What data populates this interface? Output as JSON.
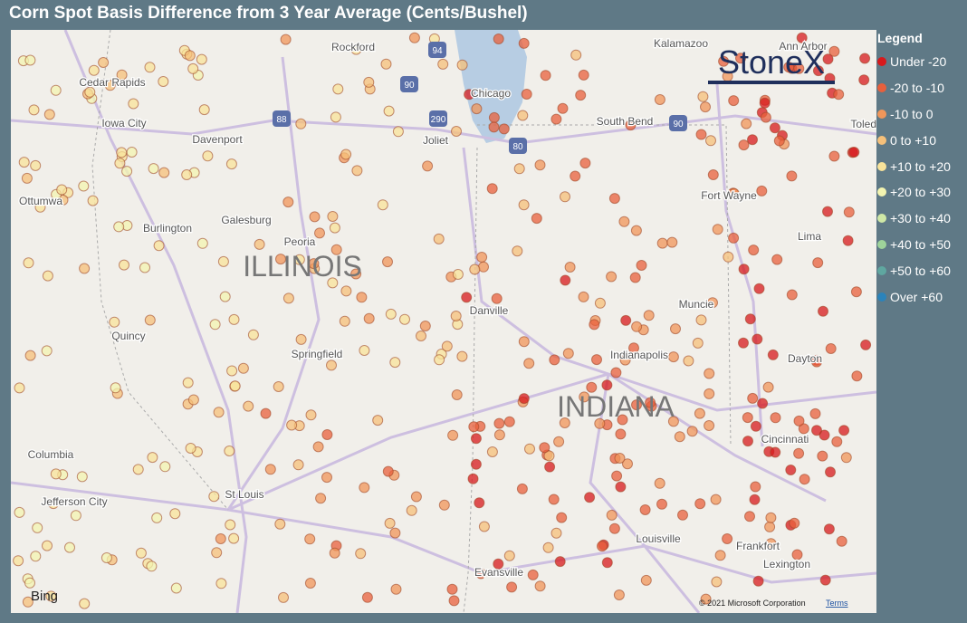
{
  "header": {
    "title": "Corn Spot Basis Difference from 3 Year Average (Cents/Bushel)"
  },
  "legend": {
    "title": "Legend",
    "items": [
      {
        "label": "Under -20",
        "color": "#d7191c"
      },
      {
        "label": "-20 to -10",
        "color": "#e8603c"
      },
      {
        "label": "-10 to 0",
        "color": "#f0965a"
      },
      {
        "label": "0 to +10",
        "color": "#f5c07a"
      },
      {
        "label": "+10 to +20",
        "color": "#f8e39a"
      },
      {
        "label": "+20 to +30",
        "color": "#f3f4b0"
      },
      {
        "label": "+30 to +40",
        "color": "#cfe8a6"
      },
      {
        "label": "+40 to +50",
        "color": "#9ed39a"
      },
      {
        "label": "+50 to +60",
        "color": "#5fa7a0"
      },
      {
        "label": "Over +60",
        "color": "#2b83ba"
      }
    ]
  },
  "map": {
    "labels": [
      "Rockford",
      "Kalamazoo",
      "Ann Arbor",
      "Cedar Rapids",
      "Chicago",
      "Iowa City",
      "Davenport",
      "Joliet",
      "South Bend",
      "Toledo",
      "Ottumwa",
      "Galesburg",
      "Burlington",
      "Fort Wayne",
      "Peoria",
      "Lima",
      "Danville",
      "Muncie",
      "Quincy",
      "Springfield",
      "Indianapolis",
      "Dayton",
      "Cincinnati",
      "Columbia",
      "Jefferson City",
      "St Louis",
      "Louisville",
      "Frankfort",
      "Lexington",
      "Evansville"
    ],
    "states": [
      "ILLINOIS",
      "INDIANA"
    ],
    "shields": [
      "94",
      "90",
      "88",
      "290",
      "80",
      "90"
    ],
    "logo": "StoneX",
    "provider": "Bing",
    "copyright": "© 2021 Microsoft Corporation",
    "terms": "Terms"
  }
}
